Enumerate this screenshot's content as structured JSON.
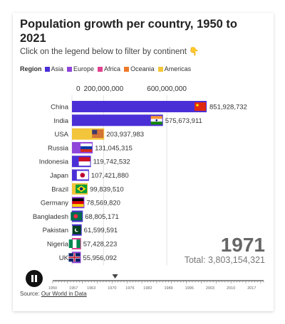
{
  "title": "Population growth per country, 1950 to 2021",
  "subtitle": "Click on the legend below to filter by continent",
  "subtitle_icon": "pointing-down-hand-icon",
  "legend": {
    "title": "Region",
    "items": [
      {
        "label": "Asia",
        "color": "#4b2fd6"
      },
      {
        "label": "Europe",
        "color": "#8f45d9"
      },
      {
        "label": "Africa",
        "color": "#e0418f"
      },
      {
        "label": "Oceania",
        "color": "#ee7a2a"
      },
      {
        "label": "Americas",
        "color": "#f3c53a"
      }
    ]
  },
  "source": {
    "label": "Source:",
    "link": "Our World in Data"
  },
  "chart_data": {
    "type": "bar",
    "orientation": "horizontal",
    "x_tick_labels": [
      "0",
      "200,000,000",
      "600,000,000"
    ],
    "x_ticks": [
      0,
      200000000,
      600000000
    ],
    "xlim": [
      0,
      851928732
    ],
    "bars": [
      {
        "country": "China",
        "value": 851928732,
        "value_label": "851,928,732",
        "region": "Asia",
        "flag_icon": "china-flag-icon"
      },
      {
        "country": "India",
        "value": 575673911,
        "value_label": "575,673,911",
        "region": "Asia",
        "flag_icon": "india-flag-icon"
      },
      {
        "country": "USA",
        "value": 203937983,
        "value_label": "203,937,983",
        "region": "Americas",
        "flag_icon": "usa-flag-icon"
      },
      {
        "country": "Russia",
        "value": 131045315,
        "value_label": "131,045,315",
        "region": "Europe",
        "flag_icon": "russia-flag-icon"
      },
      {
        "country": "Indonesia",
        "value": 119742532,
        "value_label": "119,742,532",
        "region": "Asia",
        "flag_icon": "indonesia-flag-icon"
      },
      {
        "country": "Japan",
        "value": 107421880,
        "value_label": "107,421,880",
        "region": "Asia",
        "flag_icon": "japan-flag-icon"
      },
      {
        "country": "Brazil",
        "value": 99839510,
        "value_label": "99,839,510",
        "region": "Americas",
        "flag_icon": "brazil-flag-icon"
      },
      {
        "country": "Germany",
        "value": 78569820,
        "value_label": "78,569,820",
        "region": "Europe",
        "flag_icon": "germany-flag-icon"
      },
      {
        "country": "Bangladesh",
        "value": 68805171,
        "value_label": "68,805,171",
        "region": "Asia",
        "flag_icon": "bangladesh-flag-icon"
      },
      {
        "country": "Pakistan",
        "value": 61599591,
        "value_label": "61,599,591",
        "region": "Asia",
        "flag_icon": "pakistan-flag-icon"
      },
      {
        "country": "Nigeria",
        "value": 57428223,
        "value_label": "57,428,223",
        "region": "Africa",
        "flag_icon": "nigeria-flag-icon"
      },
      {
        "country": "UK",
        "value": 55956092,
        "value_label": "55,956,092",
        "region": "Europe",
        "flag_icon": "uk-flag-icon"
      }
    ],
    "year": "1971",
    "total_label": "Total: 3,803,154,321",
    "timeline": {
      "range": [
        1950,
        2021
      ],
      "current": 1971,
      "tick_labels": [
        "1950",
        "1957",
        "1963",
        "1970",
        "1976",
        "1982",
        "1989",
        "1996",
        "2003",
        "2010",
        "2017"
      ]
    },
    "play_icon": "pause-icon"
  }
}
